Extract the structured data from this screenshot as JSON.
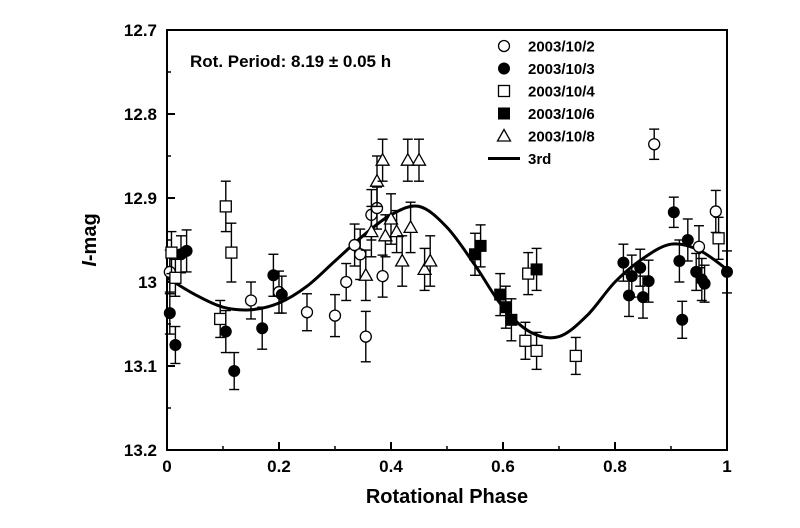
{
  "chart_data": {
    "type": "scatter",
    "title": "",
    "annotation": "Rot. Period: 8.19 ± 0.05 h",
    "xlabel": "Rotational Phase",
    "ylabel": "I-mag",
    "ylabel_italic_part": "I",
    "ylabel_rest": "-mag",
    "xlim": [
      0,
      1
    ],
    "ylim": [
      13.2,
      12.7
    ],
    "y_inverted": true,
    "x_ticks": [
      0,
      0.2,
      0.4,
      0.6,
      0.8,
      1
    ],
    "x_tick_labels": [
      "0",
      "0.2",
      "0.4",
      "0.6",
      "0.8",
      "1"
    ],
    "y_ticks": [
      12.7,
      12.8,
      12.9,
      13.0,
      13.1,
      13.2
    ],
    "y_tick_labels": [
      "12.7",
      "12.8",
      "12.9",
      "13",
      "13.1",
      "13.2"
    ],
    "grid": false,
    "legend_position": "top-right",
    "series": [
      {
        "name": "2003/10/2",
        "marker": "open-circle",
        "points": [
          [
            0.005,
            12.988,
            0.026
          ],
          [
            0.15,
            13.022,
            0.022
          ],
          [
            0.2,
            13.012,
            0.025
          ],
          [
            0.25,
            13.036,
            0.022
          ],
          [
            0.3,
            13.04,
            0.025
          ],
          [
            0.32,
            13.0,
            0.022
          ],
          [
            0.335,
            12.956,
            0.025
          ],
          [
            0.345,
            12.967,
            0.03
          ],
          [
            0.355,
            13.065,
            0.03
          ],
          [
            0.365,
            12.92,
            0.03
          ],
          [
            0.375,
            12.912,
            0.025
          ],
          [
            0.385,
            12.993,
            0.025
          ],
          [
            0.87,
            12.836,
            0.018
          ],
          [
            0.95,
            12.958,
            0.025
          ],
          [
            0.98,
            12.916,
            0.025
          ]
        ]
      },
      {
        "name": "2003/10/3",
        "marker": "filled-circle",
        "points": [
          [
            0.005,
            13.037,
            0.025
          ],
          [
            0.015,
            13.075,
            0.022
          ],
          [
            0.025,
            12.967,
            0.022
          ],
          [
            0.035,
            12.963,
            0.025
          ],
          [
            0.105,
            13.059,
            0.025
          ],
          [
            0.12,
            13.106,
            0.022
          ],
          [
            0.17,
            13.055,
            0.025
          ],
          [
            0.19,
            12.992,
            0.025
          ],
          [
            0.205,
            13.015,
            0.022
          ],
          [
            0.815,
            12.977,
            0.022
          ],
          [
            0.825,
            13.016,
            0.025
          ],
          [
            0.83,
            12.993,
            0.025
          ],
          [
            0.845,
            12.983,
            0.022
          ],
          [
            0.85,
            13.018,
            0.025
          ],
          [
            0.86,
            12.999,
            0.025
          ],
          [
            0.905,
            12.917,
            0.018
          ],
          [
            0.915,
            12.975,
            0.025
          ],
          [
            0.92,
            13.045,
            0.022
          ],
          [
            0.93,
            12.95,
            0.025
          ],
          [
            0.945,
            12.988,
            0.022
          ],
          [
            0.955,
            12.997,
            0.025
          ],
          [
            0.96,
            13.002,
            0.022
          ],
          [
            1.0,
            12.988,
            0.025
          ]
        ]
      },
      {
        "name": "2003/10/4",
        "marker": "open-square",
        "points": [
          [
            0.008,
            12.965,
            0.025
          ],
          [
            0.015,
            12.995,
            0.022
          ],
          [
            0.095,
            13.044,
            0.022
          ],
          [
            0.105,
            12.91,
            0.03
          ],
          [
            0.115,
            12.965,
            0.035
          ],
          [
            0.64,
            13.07,
            0.022
          ],
          [
            0.645,
            12.99,
            0.025
          ],
          [
            0.66,
            13.082,
            0.022
          ],
          [
            0.73,
            13.088,
            0.022
          ],
          [
            0.985,
            12.948,
            0.025
          ]
        ]
      },
      {
        "name": "2003/10/6",
        "marker": "filled-square",
        "points": [
          [
            0.55,
            12.967,
            0.025
          ],
          [
            0.56,
            12.957,
            0.025
          ],
          [
            0.595,
            13.015,
            0.025
          ],
          [
            0.605,
            13.03,
            0.025
          ],
          [
            0.615,
            13.045,
            0.025
          ],
          [
            0.66,
            12.985,
            0.025
          ]
        ]
      },
      {
        "name": "2003/10/8",
        "marker": "open-triangle",
        "points": [
          [
            0.355,
            12.992,
            0.03
          ],
          [
            0.365,
            12.94,
            0.03
          ],
          [
            0.375,
            12.88,
            0.03
          ],
          [
            0.385,
            12.855,
            0.025
          ],
          [
            0.39,
            12.945,
            0.025
          ],
          [
            0.4,
            12.925,
            0.03
          ],
          [
            0.41,
            12.94,
            0.025
          ],
          [
            0.42,
            12.975,
            0.03
          ],
          [
            0.43,
            12.855,
            0.025
          ],
          [
            0.435,
            12.935,
            0.03
          ],
          [
            0.45,
            12.855,
            0.025
          ],
          [
            0.46,
            12.985,
            0.025
          ],
          [
            0.47,
            12.975,
            0.03
          ]
        ]
      },
      {
        "name": "3rd",
        "marker": "line",
        "curve": [
          [
            0.0,
            12.995
          ],
          [
            0.05,
            13.015
          ],
          [
            0.1,
            13.03
          ],
          [
            0.15,
            13.033
          ],
          [
            0.2,
            13.025
          ],
          [
            0.25,
            13.005
          ],
          [
            0.3,
            12.975
          ],
          [
            0.35,
            12.945
          ],
          [
            0.4,
            12.92
          ],
          [
            0.45,
            12.91
          ],
          [
            0.5,
            12.935
          ],
          [
            0.55,
            12.98
          ],
          [
            0.6,
            13.03
          ],
          [
            0.65,
            13.06
          ],
          [
            0.7,
            13.065
          ],
          [
            0.75,
            13.04
          ],
          [
            0.8,
            13.0
          ],
          [
            0.85,
            12.972
          ],
          [
            0.9,
            12.955
          ],
          [
            0.95,
            12.962
          ],
          [
            1.0,
            12.985
          ]
        ]
      }
    ]
  }
}
